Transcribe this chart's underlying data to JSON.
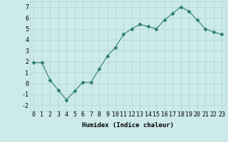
{
  "x": [
    0,
    1,
    2,
    3,
    4,
    5,
    6,
    7,
    8,
    9,
    10,
    11,
    12,
    13,
    14,
    15,
    16,
    17,
    18,
    19,
    20,
    21,
    22,
    23
  ],
  "y": [
    1.9,
    1.9,
    0.3,
    -0.6,
    -1.5,
    -0.7,
    0.1,
    0.1,
    1.3,
    2.5,
    3.3,
    4.5,
    5.0,
    5.4,
    5.2,
    5.0,
    5.8,
    6.4,
    7.0,
    6.6,
    5.8,
    5.0,
    4.7,
    4.5
  ],
  "line_color": "#2e7d6e",
  "marker": "D",
  "marker_size": 2.5,
  "bg_color": "#cceaea",
  "grid_color": "#b0d4d4",
  "xlabel": "Humidex (Indice chaleur)",
  "xlim": [
    -0.5,
    23.5
  ],
  "ylim": [
    -2.5,
    7.5
  ],
  "yticks": [
    -2,
    -1,
    0,
    1,
    2,
    3,
    4,
    5,
    6,
    7
  ],
  "xticks": [
    0,
    1,
    2,
    3,
    4,
    5,
    6,
    7,
    8,
    9,
    10,
    11,
    12,
    13,
    14,
    15,
    16,
    17,
    18,
    19,
    20,
    21,
    22,
    23
  ],
  "label_fontsize": 6.5,
  "tick_fontsize": 6.0
}
